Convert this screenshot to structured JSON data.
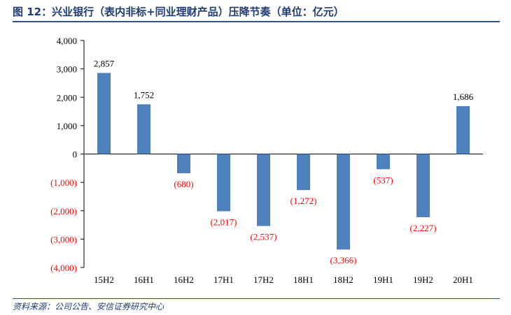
{
  "title": "图 12：兴业银行（表内非标+同业理财产品）压降节奏（单位：亿元）",
  "source": "资料来源：公司公告、安信证券研究中心",
  "chart_data": {
    "type": "bar",
    "categories": [
      "15H2",
      "16H1",
      "16H2",
      "17H1",
      "17H2",
      "18H1",
      "18H2",
      "19H1",
      "19H2",
      "20H1"
    ],
    "values": [
      2857,
      1752,
      -680,
      -2017,
      -2537,
      -1272,
      -3366,
      -537,
      -2227,
      1686
    ],
    "data_labels": [
      "2,857",
      "1,752",
      "(680)",
      "(2,017)",
      "(2,537)",
      "(1,272)",
      "(3,366)",
      "(537)",
      "(2,227)",
      "1,686"
    ],
    "ylim": [
      -4000,
      4000
    ],
    "yticks": [
      4000,
      3000,
      2000,
      1000,
      0,
      -1000,
      -2000,
      -3000,
      -4000
    ],
    "ytick_labels": [
      "4,000",
      "3,000",
      "2,000",
      "1,000",
      "0",
      "(1,000)",
      "(2,000)",
      "(3,000)",
      "(4,000)"
    ],
    "bar_color": "#4f81bd",
    "positive_label_color": "#000000",
    "negative_label_color": "#ff0000",
    "grid": false,
    "legend": "none"
  }
}
